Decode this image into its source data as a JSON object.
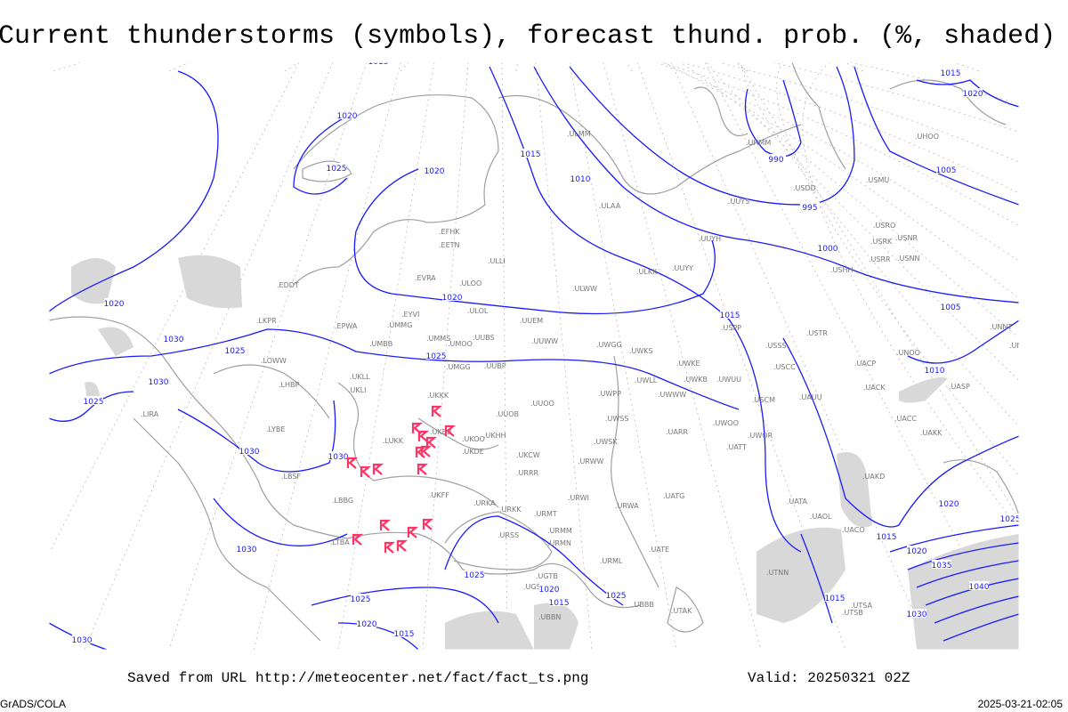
{
  "title": "Current thunderstorms (symbols), forecast thund. prob. (%, shaded)",
  "footer": {
    "saved_from": "Saved from URL http://meteocenter.net/fact/fact_ts.png",
    "valid": "Valid: 20250321 02Z",
    "software": "GrADS/COLA",
    "timestamp": "2025-03-21-02:05"
  },
  "colors": {
    "isobars": "#1a1aff",
    "coastlines": "#a0a0a0",
    "thunderstorm_symbols": "#ff3366",
    "probability_shading": "#d8d8d8"
  },
  "symbol_icon": "thunderstorm-icon",
  "stations": [
    "EFHK",
    "EETN",
    "ULLI",
    "EVRA",
    "ULOO",
    "ULOL",
    "UUEM",
    "ULWW",
    "ULKK",
    "UUYY",
    "UUYH",
    "ULAA",
    "UUYS",
    "USDD",
    "USMU",
    "USRO",
    "USRK",
    "USNR",
    "USRR",
    "USNN",
    "USHH",
    "EPWA",
    "UMMG",
    "EYVI",
    "UMBB",
    "UMMS",
    "UMOO",
    "UUBS",
    "UUWW",
    "UWGG",
    "UWKS",
    "UWKE",
    "UWKB",
    "UWUU",
    "USPP",
    "USSS",
    "USTR",
    "UNOO",
    "UNNT",
    "UNBB",
    "USCC",
    "UACP",
    "UACK",
    "UASP",
    "UMGG",
    "UUBP",
    "UKLL",
    "UKLI",
    "UKKK",
    "UUOO",
    "UUOB",
    "UWPP",
    "UWWW",
    "UWLL",
    "USCM",
    "UAUU",
    "UWSS",
    "UKHH",
    "UKOO",
    "UKBB",
    "LUKK",
    "UKDE",
    "UKCW",
    "UWOO",
    "UARR",
    "UATT",
    "UWOR",
    "URWW",
    "URRR",
    "UWSK",
    "UACC",
    "UAKK",
    "UAKD",
    "UKFF",
    "URKA",
    "URKK",
    "URWI",
    "UATG",
    "URWA",
    "URMT",
    "URMM",
    "URMN",
    "URSS",
    "UATE",
    "URML",
    "UATA",
    "UAOL",
    "UACO",
    "UTNN",
    "UTSA",
    "UTSB",
    "UTAK",
    "UBBB",
    "UGTB",
    "UBBN",
    "UGSB",
    "LTBA",
    "LBSF",
    "LBBG",
    "LYBE",
    "LIRA",
    "LHBP",
    "LOWW",
    "LKPR",
    "EDDT",
    "ULMM",
    "UHMM",
    "UHOO"
  ],
  "isobar_labels": [
    "1015",
    "1020",
    "1025",
    "1020",
    "1015",
    "1010",
    "990",
    "995",
    "1000",
    "1005",
    "1005",
    "1015",
    "1020",
    "1010",
    "1015",
    "1020",
    "1025",
    "1020",
    "1025",
    "1030",
    "1030",
    "1025",
    "1030",
    "1030",
    "1030",
    "1025",
    "1025",
    "1020",
    "1020",
    "1015",
    "1015",
    "1025",
    "1015",
    "1020",
    "1015",
    "1030",
    "1025",
    "1020",
    "1035",
    "1040",
    "1030"
  ],
  "thunderstorm_count_shown": 17
}
